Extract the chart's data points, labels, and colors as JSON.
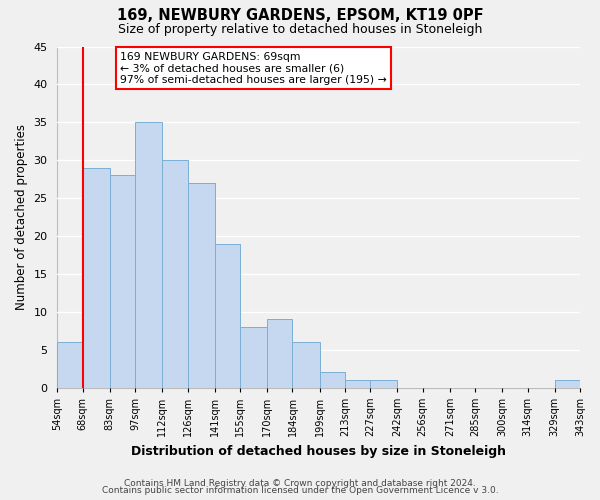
{
  "title": "169, NEWBURY GARDENS, EPSOM, KT19 0PF",
  "subtitle": "Size of property relative to detached houses in Stoneleigh",
  "xlabel": "Distribution of detached houses by size in Stoneleigh",
  "ylabel": "Number of detached properties",
  "footer_line1": "Contains HM Land Registry data © Crown copyright and database right 2024.",
  "footer_line2": "Contains public sector information licensed under the Open Government Licence v 3.0.",
  "bar_edges": [
    54,
    68,
    83,
    97,
    112,
    126,
    141,
    155,
    170,
    184,
    199,
    213,
    227,
    242,
    256,
    271,
    285,
    300,
    314,
    329,
    343
  ],
  "bar_heights": [
    6,
    29,
    28,
    35,
    30,
    27,
    19,
    8,
    9,
    6,
    2,
    1,
    1,
    0,
    0,
    0,
    0,
    0,
    0,
    1
  ],
  "bar_color": "#c5d8f0",
  "bar_edge_color": "#7bafd4",
  "red_line_x": 68,
  "ylim": [
    0,
    45
  ],
  "yticks": [
    0,
    5,
    10,
    15,
    20,
    25,
    30,
    35,
    40,
    45
  ],
  "annotation_text_line1": "169 NEWBURY GARDENS: 69sqm",
  "annotation_text_line2": "← 3% of detached houses are smaller (6)",
  "annotation_text_line3": "97% of semi-detached houses are larger (195) →",
  "background_color": "#f0f0f0",
  "plot_bg_color": "#f0f0f0",
  "grid_color": "#ffffff",
  "tick_labels": [
    "54sqm",
    "68sqm",
    "83sqm",
    "97sqm",
    "112sqm",
    "126sqm",
    "141sqm",
    "155sqm",
    "170sqm",
    "184sqm",
    "199sqm",
    "213sqm",
    "227sqm",
    "242sqm",
    "256sqm",
    "271sqm",
    "285sqm",
    "300sqm",
    "314sqm",
    "329sqm",
    "343sqm"
  ]
}
